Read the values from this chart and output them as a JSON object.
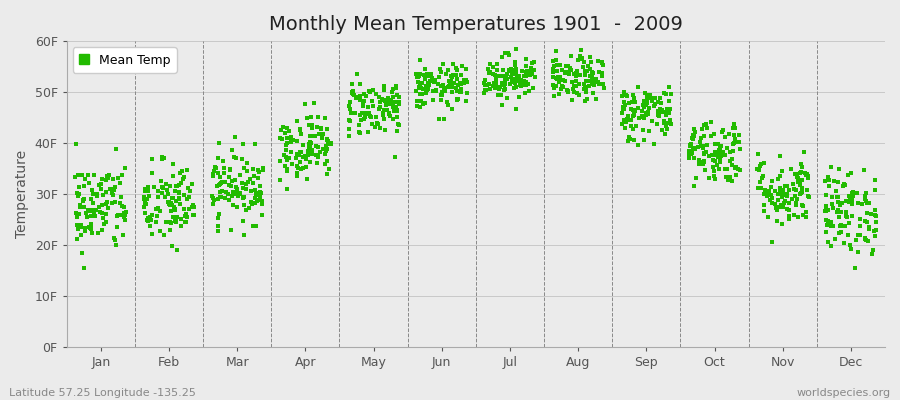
{
  "title": "Monthly Mean Temperatures 1901  -  2009",
  "ylabel": "Temperature",
  "subtitle_left": "Latitude 57.25 Longitude -135.25",
  "subtitle_right": "worldspecies.org",
  "legend_label": "Mean Temp",
  "marker_color": "#22bb00",
  "bg_color": "#ebebeb",
  "plot_bg_color": "#ebebeb",
  "ylim": [
    0,
    60
  ],
  "ytick_labels": [
    "0F",
    "10F",
    "20F",
    "30F",
    "40F",
    "50F",
    "60F"
  ],
  "ytick_values": [
    0,
    10,
    20,
    30,
    40,
    50,
    60
  ],
  "months": [
    "Jan",
    "Feb",
    "Mar",
    "Apr",
    "May",
    "Jun",
    "Jul",
    "Aug",
    "Sep",
    "Oct",
    "Nov",
    "Dec"
  ],
  "mean_temps_by_month": [
    27.5,
    28.0,
    31.5,
    39.5,
    47.0,
    51.0,
    53.0,
    52.5,
    46.0,
    38.5,
    30.5,
    26.5
  ],
  "std_temps_by_month": [
    4.5,
    4.2,
    3.5,
    3.2,
    2.8,
    2.2,
    2.2,
    2.2,
    2.8,
    3.2,
    3.5,
    4.2
  ],
  "seed": 42,
  "n_years": 109,
  "title_fontsize": 14,
  "axis_fontsize": 10,
  "tick_fontsize": 9,
  "legend_fontsize": 9,
  "marker_size": 3.0
}
